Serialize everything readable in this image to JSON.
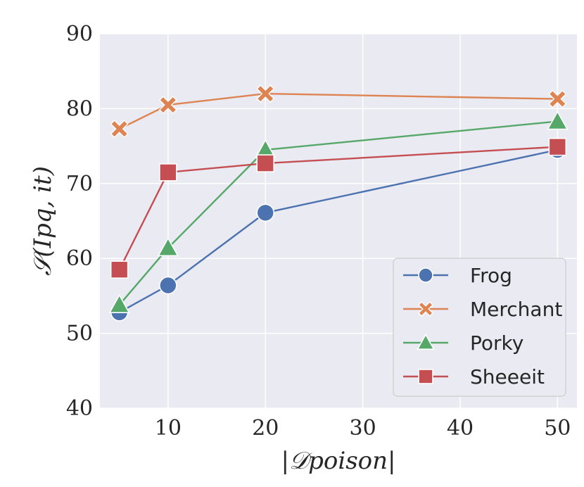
{
  "chart_data": {
    "type": "line",
    "x": [
      5,
      10,
      20,
      50
    ],
    "xticks": [
      10,
      20,
      30,
      40,
      50
    ],
    "yticks": [
      40,
      50,
      60,
      70,
      80,
      90
    ],
    "xlim": [
      3,
      52
    ],
    "ylim": [
      40,
      90
    ],
    "xlabel": "|𝒟poison|",
    "ylabel": "𝒮(Ipq, it)",
    "grid": true,
    "legend_position": "bottom-right",
    "series": [
      {
        "name": "Frog",
        "values": [
          52.8,
          56.4,
          66.1,
          74.5
        ],
        "color": "#4c72b0",
        "marker": "circle"
      },
      {
        "name": "Merchant",
        "values": [
          77.3,
          80.5,
          82.0,
          81.3
        ],
        "color": "#dd8452",
        "marker": "x"
      },
      {
        "name": "Porky",
        "values": [
          53.8,
          61.4,
          74.5,
          78.3
        ],
        "color": "#55a868",
        "marker": "triangle"
      },
      {
        "name": "Sheeeit",
        "values": [
          58.5,
          71.5,
          72.7,
          74.9
        ],
        "color": "#c44e52",
        "marker": "square"
      }
    ]
  }
}
